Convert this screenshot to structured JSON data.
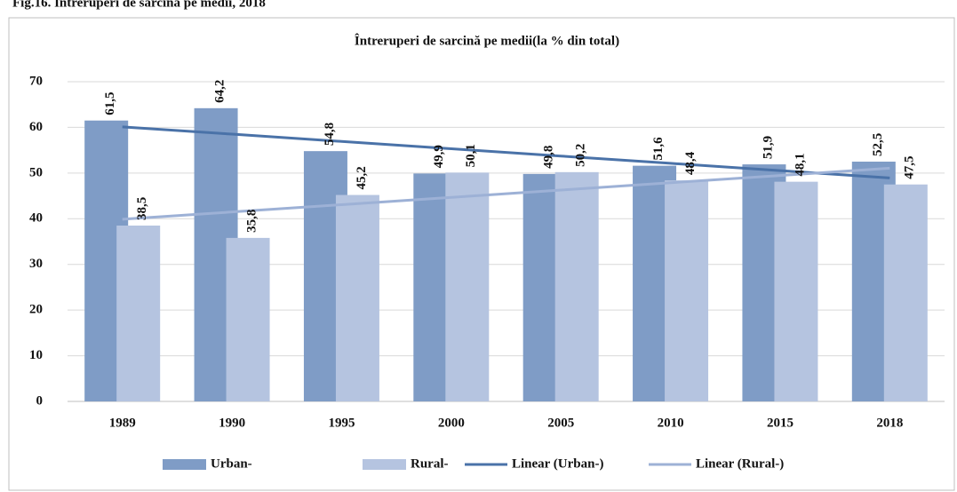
{
  "page_title": "Fig.16. Întreruperi de sarcină pe medii, 2018",
  "chart_data": {
    "type": "bar",
    "title": "Întreruperi de sarcină pe medii(la % din total)",
    "categories": [
      "1989",
      "1990",
      "1995",
      "2000",
      "2005",
      "2010",
      "2015",
      "2018"
    ],
    "series": [
      {
        "name": "Urban-",
        "color": "#7f9cc6",
        "values": [
          61.5,
          64.2,
          54.8,
          49.9,
          49.8,
          51.6,
          51.9,
          52.5
        ],
        "value_labels": [
          "61,5",
          "64,2",
          "54,8",
          "49,9",
          "49,8",
          "51,6",
          "51,9",
          "52,5"
        ]
      },
      {
        "name": "Rural-",
        "color": "#b5c4e0",
        "values": [
          38.5,
          35.8,
          45.2,
          50.1,
          50.2,
          48.4,
          48.1,
          47.5
        ],
        "value_labels": [
          "38,5",
          "35,8",
          "45,2",
          "50,1",
          "50,2",
          "48,4",
          "48,1",
          "47,5"
        ]
      }
    ],
    "trendlines": [
      {
        "name": "Linear (Urban-)",
        "color": "#4a72a8"
      },
      {
        "name": "Linear (Rural-)",
        "color": "#9db1d6"
      }
    ],
    "ylim": [
      0,
      70
    ],
    "yticks": [
      0,
      10,
      20,
      30,
      40,
      50,
      60,
      70
    ],
    "grid": true
  }
}
